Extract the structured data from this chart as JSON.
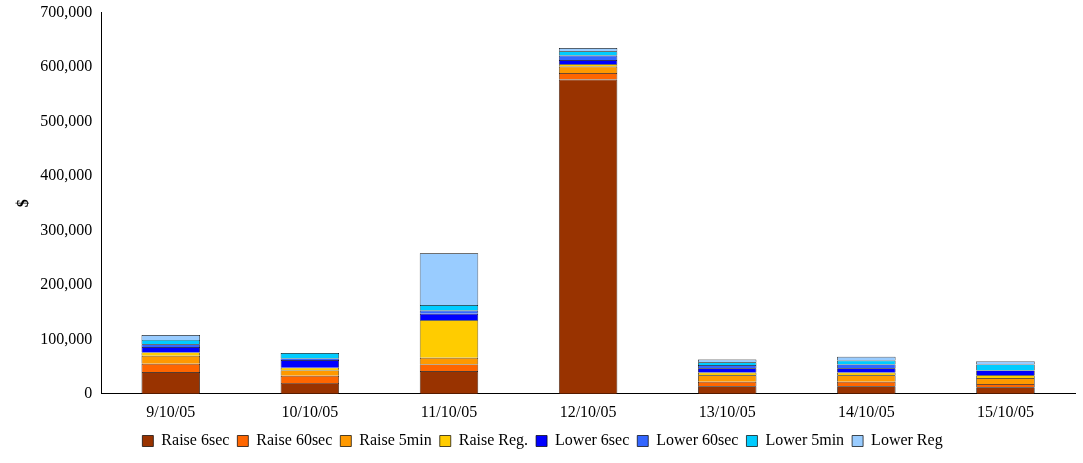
{
  "chart_data": {
    "type": "bar",
    "stacked": true,
    "ylabel": "$",
    "legend": "bottom",
    "grid": false,
    "categories": [
      "9/10/05",
      "10/10/05",
      "11/10/05",
      "12/10/05",
      "13/10/05",
      "14/10/05",
      "15/10/05"
    ],
    "ylim": [
      0,
      700000
    ],
    "yticks": [
      {
        "value": 0,
        "label": "0"
      },
      {
        "value": 100000,
        "label": "100,000"
      },
      {
        "value": 200000,
        "label": "200,000"
      },
      {
        "value": 300000,
        "label": "300,000"
      },
      {
        "value": 400000,
        "label": "400,000"
      },
      {
        "value": 500000,
        "label": "500,000"
      },
      {
        "value": 600000,
        "label": "600,000"
      },
      {
        "value": 700000,
        "label": "700,000"
      }
    ],
    "series": [
      {
        "name": "Raise 6sec",
        "color": "#993300",
        "values": [
          40000,
          20000,
          42000,
          577000,
          14000,
          14000,
          12000
        ]
      },
      {
        "name": "Raise 60sec",
        "color": "#ff6600",
        "values": [
          15000,
          13000,
          12000,
          12000,
          8000,
          8000,
          6000
        ]
      },
      {
        "name": "Raise 5min",
        "color": "#ff9900",
        "values": [
          15000,
          10000,
          12000,
          12000,
          12000,
          12000,
          11000
        ]
      },
      {
        "name": "Raise Reg.",
        "color": "#ffcc00",
        "values": [
          6000,
          5000,
          69000,
          4000,
          5000,
          5000,
          5000
        ]
      },
      {
        "name": "Lower 6sec",
        "color": "#0000ff",
        "values": [
          10000,
          14000,
          12000,
          8000,
          8000,
          8000,
          9000
        ]
      },
      {
        "name": "Lower 60sec",
        "color": "#3366ff",
        "values": [
          5000,
          3000,
          6000,
          8000,
          6000,
          7000,
          null
        ]
      },
      {
        "name": "Lower 5min",
        "color": "#00ccff",
        "values": [
          8000,
          10000,
          10000,
          8000,
          5000,
          7000,
          11000
        ]
      },
      {
        "name": "Lower Reg",
        "color": "#99ccff",
        "values": [
          9000,
          null,
          95000,
          6000,
          5000,
          7000,
          6000
        ]
      }
    ]
  }
}
